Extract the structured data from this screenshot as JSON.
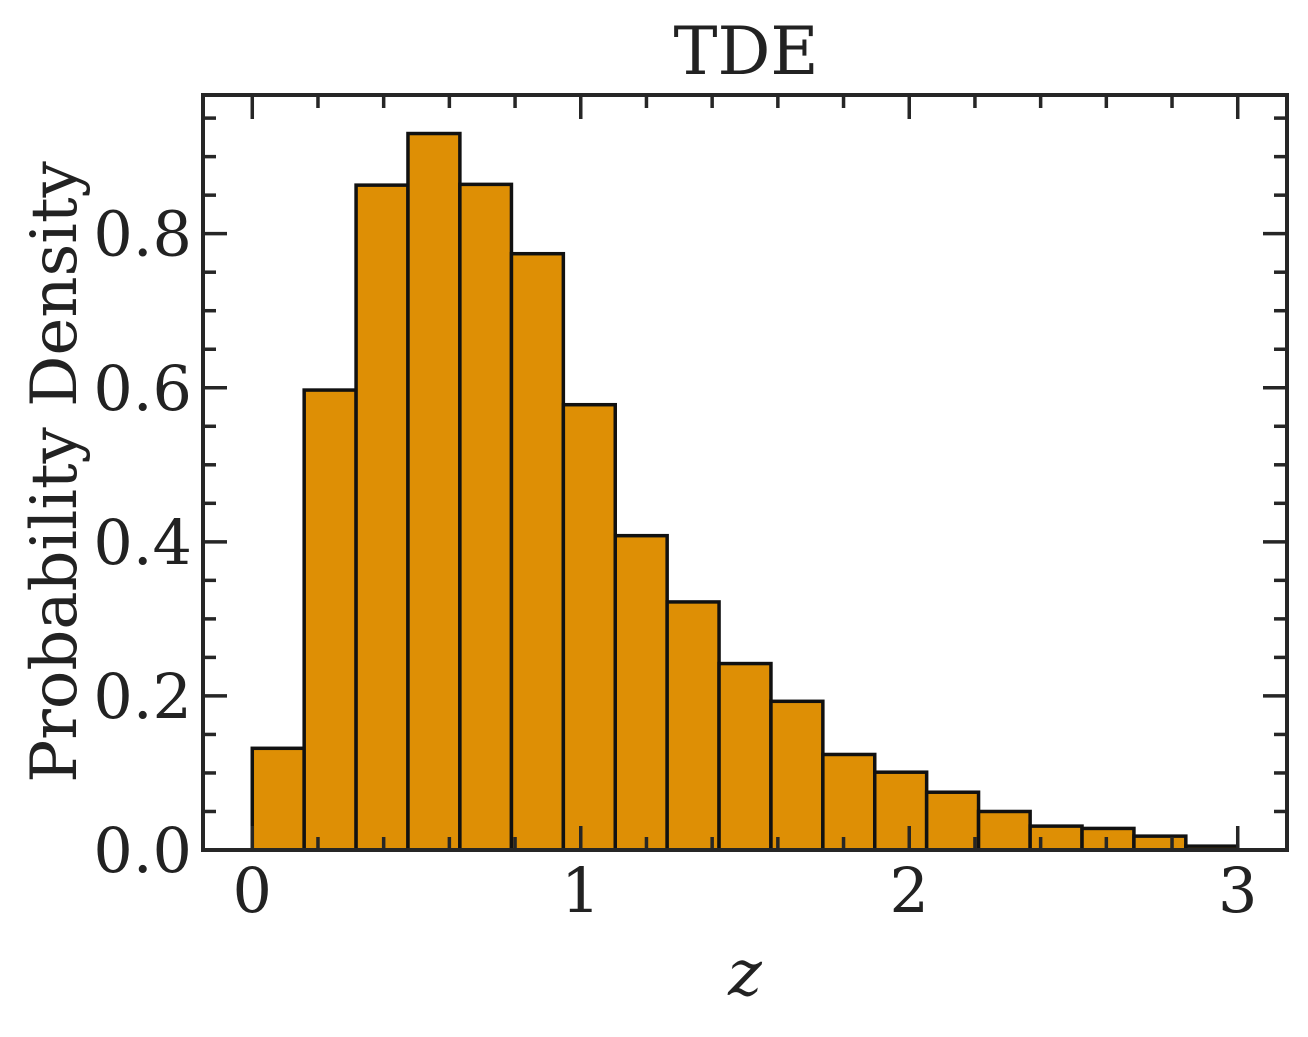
{
  "chart_data": {
    "type": "bar",
    "title": "TDE",
    "xlabel": "z",
    "ylabel": "Probability Density",
    "xlim": [
      -0.15,
      3.15
    ],
    "ylim": [
      0,
      0.98
    ],
    "bin_edges": [
      0.0,
      0.158,
      0.316,
      0.474,
      0.632,
      0.789,
      0.947,
      1.105,
      1.263,
      1.421,
      1.579,
      1.737,
      1.895,
      2.053,
      2.211,
      2.368,
      2.526,
      2.684,
      2.842,
      3.0
    ],
    "values": [
      0.132,
      0.597,
      0.863,
      0.93,
      0.864,
      0.774,
      0.578,
      0.408,
      0.322,
      0.242,
      0.193,
      0.124,
      0.101,
      0.075,
      0.05,
      0.031,
      0.028,
      0.018,
      0.005
    ],
    "x_ticks": [
      0,
      1,
      2,
      3
    ],
    "x_tick_labels": [
      "0",
      "1",
      "2",
      "3"
    ],
    "x_minor_step": 0.2,
    "y_ticks": [
      0.0,
      0.2,
      0.4,
      0.6,
      0.8
    ],
    "y_tick_labels": [
      "0.0",
      "0.2",
      "0.4",
      "0.6",
      "0.8"
    ],
    "y_minor_step": 0.05,
    "grid": false,
    "bar_color": "#de8f05",
    "edge_color": "#111111",
    "axis_color": "#262626"
  }
}
